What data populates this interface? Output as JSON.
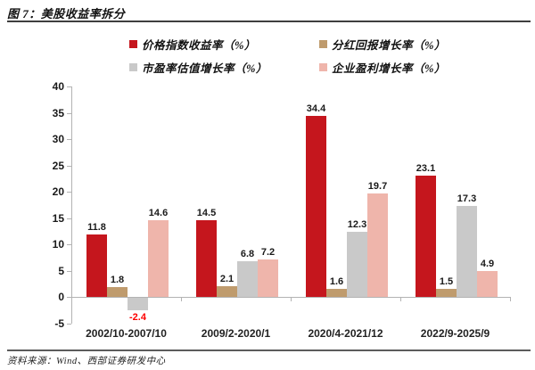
{
  "header": {
    "figure_label": "图 7：美股收益率拆分"
  },
  "footer": {
    "source": "资料来源：Wind、西部证券研发中心"
  },
  "chart_data": {
    "type": "bar",
    "title": "美股收益率拆分",
    "categories": [
      "2002/10-2007/10",
      "2009/2-2020/1",
      "2020/4-2021/12",
      "2022/9-2025/9"
    ],
    "series": [
      {
        "name": "价格指数收益率（%）",
        "color": "#c5161d",
        "values": [
          11.8,
          14.5,
          34.4,
          23.1
        ]
      },
      {
        "name": "分红回报增长率（%）",
        "color": "#bf9b6d",
        "values": [
          1.8,
          2.1,
          1.6,
          1.5
        ]
      },
      {
        "name": "市盈率估值增长率（%）",
        "color": "#c9c9c9",
        "values": [
          -2.4,
          6.8,
          12.3,
          17.3
        ]
      },
      {
        "name": "企业盈利增长率（%）",
        "color": "#efb5ab",
        "values": [
          14.6,
          7.2,
          19.7,
          4.9
        ]
      }
    ],
    "ylim": [
      -5,
      40
    ],
    "ytick_step": 5,
    "grid": false,
    "legend_position": "top",
    "axis_color": "#b3b3b3",
    "negative_label_color": "#fe0000"
  }
}
